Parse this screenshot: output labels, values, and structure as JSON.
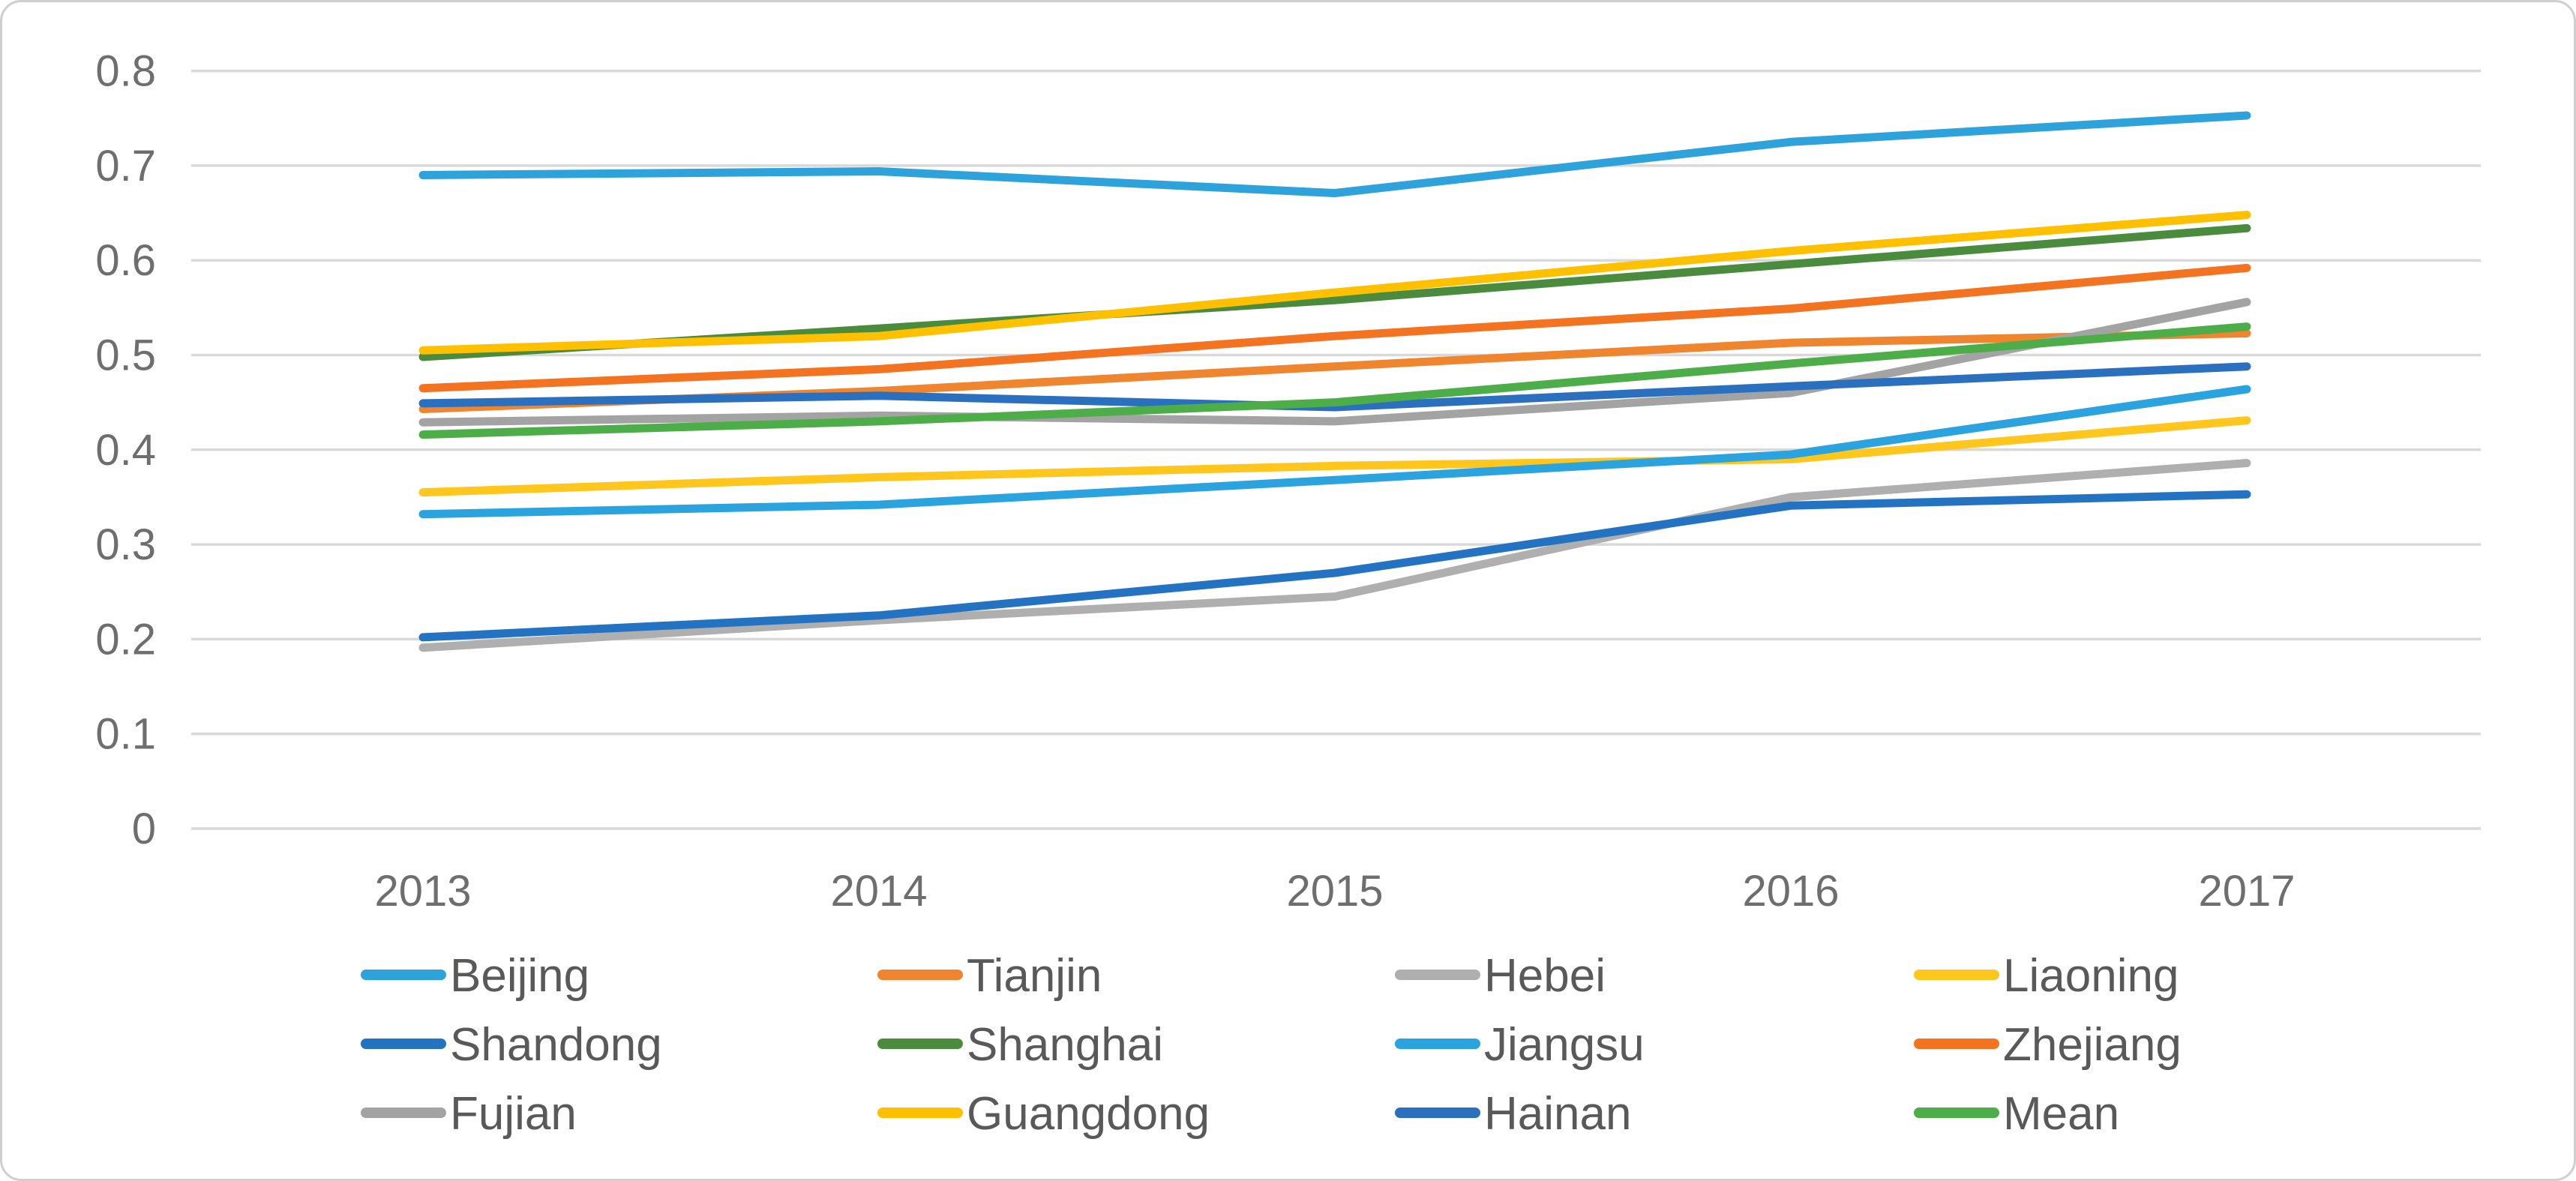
{
  "figure": {
    "background": "#ffffff",
    "border_color": "#cfcfcf",
    "gridline_color": "#d9d9d9",
    "axis_label_color": "#6e6e6e",
    "legend_label_color": "#595959"
  },
  "chart_data": {
    "type": "line",
    "title": "",
    "xlabel": "",
    "ylabel": "",
    "x": [
      "2013",
      "2014",
      "2015",
      "2016",
      "2017"
    ],
    "y_ticks": [
      "0",
      "0.1",
      "0.2",
      "0.3",
      "0.4",
      "0.5",
      "0.6",
      "0.7",
      "0.8"
    ],
    "ylim": [
      0,
      0.8
    ],
    "grid": true,
    "legend_position": "bottom",
    "series": [
      {
        "name": "Beijing",
        "color": "#2EA2DB",
        "values": [
          0.69,
          0.694,
          0.671,
          0.725,
          0.753
        ]
      },
      {
        "name": "Tianjin",
        "color": "#F0852F",
        "values": [
          0.443,
          0.462,
          0.488,
          0.513,
          0.523
        ]
      },
      {
        "name": "Hebei",
        "color": "#AFAFAF",
        "values": [
          0.191,
          0.22,
          0.245,
          0.35,
          0.386
        ]
      },
      {
        "name": "Liaoning",
        "color": "#FFC61E",
        "values": [
          0.355,
          0.371,
          0.383,
          0.39,
          0.431
        ]
      },
      {
        "name": "Shandong",
        "color": "#2473C3",
        "values": [
          0.202,
          0.225,
          0.27,
          0.341,
          0.353
        ]
      },
      {
        "name": "Shanghai",
        "color": "#4A8B3D",
        "values": [
          0.498,
          0.528,
          0.558,
          0.596,
          0.634
        ]
      },
      {
        "name": "Jiangsu",
        "color": "#2AA3DE",
        "values": [
          0.332,
          0.342,
          0.368,
          0.395,
          0.464
        ]
      },
      {
        "name": "Zhejiang",
        "color": "#F37321",
        "values": [
          0.465,
          0.485,
          0.52,
          0.549,
          0.592
        ]
      },
      {
        "name": "Fujian",
        "color": "#A3A3A3",
        "values": [
          0.429,
          0.436,
          0.43,
          0.46,
          0.556
        ]
      },
      {
        "name": "Guangdong",
        "color": "#FFC000",
        "values": [
          0.505,
          0.52,
          0.566,
          0.61,
          0.648
        ]
      },
      {
        "name": "Hainan",
        "color": "#2A70BE",
        "values": [
          0.449,
          0.457,
          0.445,
          0.467,
          0.488
        ]
      },
      {
        "name": "Mean",
        "color": "#4DAE49",
        "values": [
          0.416,
          0.43,
          0.45,
          0.491,
          0.53
        ]
      }
    ]
  }
}
